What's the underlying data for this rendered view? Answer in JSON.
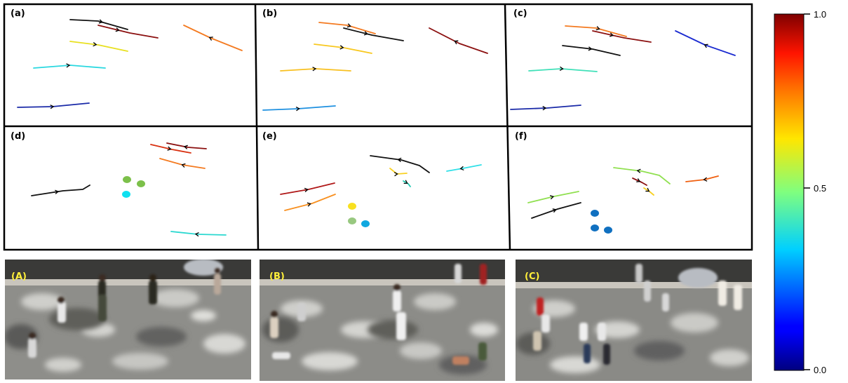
{
  "panels": [
    {
      "label": "(a)",
      "tracks": [
        {
          "c": "#111111",
          "pts": [
            [
              100,
              28
            ],
            [
              140,
              30
            ],
            [
              182,
              42
            ]
          ],
          "a": 0.55,
          "dir": 1
        },
        {
          "c": "#8b1010",
          "pts": [
            [
              140,
              36
            ],
            [
              185,
              47
            ],
            [
              225,
              54
            ]
          ],
          "a": 0.35,
          "dir": 1
        },
        {
          "c": "#f47a20",
          "pts": [
            [
              262,
              36
            ],
            [
              300,
              54
            ],
            [
              345,
              72
            ]
          ],
          "a": 0.45,
          "dir": -1
        },
        {
          "c": "#e8e020",
          "pts": [
            [
              100,
              59
            ],
            [
              140,
              64
            ],
            [
              182,
              73
            ]
          ],
          "a": 0.45,
          "dir": 1
        },
        {
          "c": "#2ad8e0",
          "pts": [
            [
              48,
              97
            ],
            [
              100,
              93
            ],
            [
              150,
              97
            ]
          ],
          "a": 0.5,
          "dir": 1
        },
        {
          "c": "#1a2aa8",
          "pts": [
            [
              25,
              153
            ],
            [
              75,
              152
            ],
            [
              127,
              147
            ]
          ],
          "a": 0.5,
          "dir": 1
        }
      ],
      "dots": []
    },
    {
      "label": "(b)",
      "tracks": [
        {
          "c": "#f47a20",
          "pts": [
            [
              455,
              32
            ],
            [
              495,
              36
            ],
            [
              535,
              48
            ]
          ],
          "a": 0.55,
          "dir": 1
        },
        {
          "c": "#111111",
          "pts": [
            [
              490,
              40
            ],
            [
              530,
              50
            ],
            [
              575,
              58
            ]
          ],
          "a": 0.4,
          "dir": 1
        },
        {
          "c": "#8b1010",
          "pts": [
            [
              612,
              40
            ],
            [
              655,
              62
            ],
            [
              695,
              76
            ]
          ],
          "a": 0.45,
          "dir": -1
        },
        {
          "c": "#f8c820",
          "pts": [
            [
              448,
              63
            ],
            [
              490,
              68
            ],
            [
              530,
              76
            ]
          ],
          "a": 0.5,
          "dir": 1
        },
        {
          "c": "#f8c020",
          "pts": [
            [
              400,
              101
            ],
            [
              450,
              98
            ],
            [
              500,
              101
            ]
          ],
          "a": 0.5,
          "dir": 1
        },
        {
          "c": "#1e90e0",
          "pts": [
            [
              375,
              157
            ],
            [
              425,
              155
            ],
            [
              478,
              151
            ]
          ],
          "a": 0.5,
          "dir": 1
        }
      ],
      "dots": []
    },
    {
      "label": "(c)",
      "tracks": [
        {
          "c": "#f47a20",
          "pts": [
            [
              806,
              37
            ],
            [
              850,
              40
            ],
            [
              893,
              52
            ]
          ],
          "a": 0.55,
          "dir": 1
        },
        {
          "c": "#8b1010",
          "pts": [
            [
              845,
              44
            ],
            [
              890,
              54
            ],
            [
              928,
              60
            ]
          ],
          "a": 0.35,
          "dir": 1
        },
        {
          "c": "#1a2ad0",
          "pts": [
            [
              963,
              44
            ],
            [
              1005,
              64
            ],
            [
              1048,
              79
            ]
          ],
          "a": 0.5,
          "dir": -1
        },
        {
          "c": "#111111",
          "pts": [
            [
              802,
              65
            ],
            [
              845,
              70
            ],
            [
              884,
              79
            ]
          ],
          "a": 0.5,
          "dir": 1
        },
        {
          "c": "#40e0b8",
          "pts": [
            [
              754,
              101
            ],
            [
              800,
              98
            ],
            [
              851,
              102
            ]
          ],
          "a": 0.5,
          "dir": 1
        },
        {
          "c": "#1a2aa8",
          "pts": [
            [
              728,
              156
            ],
            [
              780,
              154
            ],
            [
              828,
              150
            ]
          ],
          "a": 0.5,
          "dir": 1
        }
      ],
      "dots": []
    },
    {
      "label": "(d)",
      "tracks": [
        {
          "c": "#d83010",
          "pts": [
            [
              215,
              206
            ],
            [
              245,
              213
            ],
            [
              272,
              218
            ]
          ],
          "a": 0.5,
          "dir": 1
        },
        {
          "c": "#8b1010",
          "pts": [
            [
              238,
              204
            ],
            [
              268,
              210
            ],
            [
              294,
              212
            ]
          ],
          "a": 0.45,
          "dir": -1
        },
        {
          "c": "#f47a20",
          "pts": [
            [
              228,
              226
            ],
            [
              260,
              235
            ],
            [
              292,
              240
            ]
          ],
          "a": 0.5,
          "dir": -1
        },
        {
          "c": "#111111",
          "pts": [
            [
              45,
              279
            ],
            [
              90,
              272
            ],
            [
              118,
              270
            ],
            [
              128,
              264
            ]
          ],
          "a": 0.45,
          "dir": 1
        },
        {
          "c": "#2ad8d0",
          "pts": [
            [
              244,
              330
            ],
            [
              282,
              334
            ],
            [
              322,
              335
            ]
          ],
          "a": 0.45,
          "dir": -1
        }
      ],
      "dots": [
        {
          "c": "#7cc04a",
          "x": 181,
          "y": 256
        },
        {
          "c": "#7cc04a",
          "x": 201,
          "y": 262
        },
        {
          "c": "#10e0f0",
          "x": 180,
          "y": 277
        }
      ]
    },
    {
      "label": "(e)",
      "tracks": [
        {
          "c": "#111111",
          "pts": [
            [
              528,
              222
            ],
            [
              572,
              228
            ],
            [
              598,
              236
            ],
            [
              612,
              246
            ]
          ],
          "a": 0.45,
          "dir": -1
        },
        {
          "c": "#30e0e8",
          "pts": [
            [
              637,
              244
            ],
            [
              660,
              240
            ],
            [
              686,
              235
            ]
          ],
          "a": 0.4,
          "dir": -1
        },
        {
          "c": "#f8d020",
          "pts": [
            [
              556,
              240
            ],
            [
              566,
              248
            ],
            [
              580,
              247
            ]
          ],
          "a": 0.5,
          "dir": 1
        },
        {
          "c": "#20c8b0",
          "pts": [
            [
              575,
              258
            ],
            [
              582,
              262
            ],
            [
              585,
              266
            ]
          ],
          "a": 0.5,
          "dir": 1
        },
        {
          "c": "#b01818",
          "pts": [
            [
              400,
              277
            ],
            [
              440,
              270
            ],
            [
              477,
              261
            ]
          ],
          "a": 0.5,
          "dir": 1
        },
        {
          "c": "#f89020",
          "pts": [
            [
              406,
              300
            ],
            [
              445,
              290
            ],
            [
              478,
              277
            ]
          ],
          "a": 0.5,
          "dir": 1
        }
      ],
      "dots": [
        {
          "c": "#f8e020",
          "x": 502,
          "y": 294
        },
        {
          "c": "#98c880",
          "x": 502,
          "y": 315
        },
        {
          "c": "#10a8e0",
          "x": 521,
          "y": 319
        }
      ]
    },
    {
      "label": "(f)",
      "tracks": [
        {
          "c": "#90e050",
          "pts": [
            [
              875,
              239
            ],
            [
              915,
              244
            ],
            [
              940,
              250
            ],
            [
              955,
              262
            ]
          ],
          "a": 0.4,
          "dir": -1
        },
        {
          "c": "#f06010",
          "pts": [
            [
              978,
              259
            ],
            [
              1005,
              256
            ],
            [
              1024,
              251
            ]
          ],
          "a": 0.55,
          "dir": -1
        },
        {
          "c": "#8b1010",
          "pts": [
            [
              902,
              254
            ],
            [
              915,
              260
            ],
            [
              922,
              264
            ]
          ],
          "a": 0.5,
          "dir": 1
        },
        {
          "c": "#f8d020",
          "pts": [
            [
              918,
              268
            ],
            [
              926,
              273
            ],
            [
              932,
              278
            ]
          ],
          "a": 0.5,
          "dir": 1
        },
        {
          "c": "#90e050",
          "pts": [
            [
              753,
              289
            ],
            [
              790,
              280
            ],
            [
              825,
              273
            ]
          ],
          "a": 0.5,
          "dir": 1
        },
        {
          "c": "#111111",
          "pts": [
            [
              758,
              311
            ],
            [
              795,
              298
            ],
            [
              828,
              289
            ]
          ],
          "a": 0.5,
          "dir": 1
        }
      ],
      "dots": [
        {
          "c": "#1070c0",
          "x": 848,
          "y": 304
        },
        {
          "c": "#1070c0",
          "x": 848,
          "y": 325
        },
        {
          "c": "#1070c0",
          "x": 867,
          "y": 328
        }
      ]
    }
  ],
  "photos": [
    {
      "label": "(A)"
    },
    {
      "label": "(B)"
    },
    {
      "label": "(C)"
    }
  ],
  "colorbar": {
    "colormap": "jet",
    "ticks": [
      "1.0",
      "0.5",
      "0.0"
    ]
  }
}
